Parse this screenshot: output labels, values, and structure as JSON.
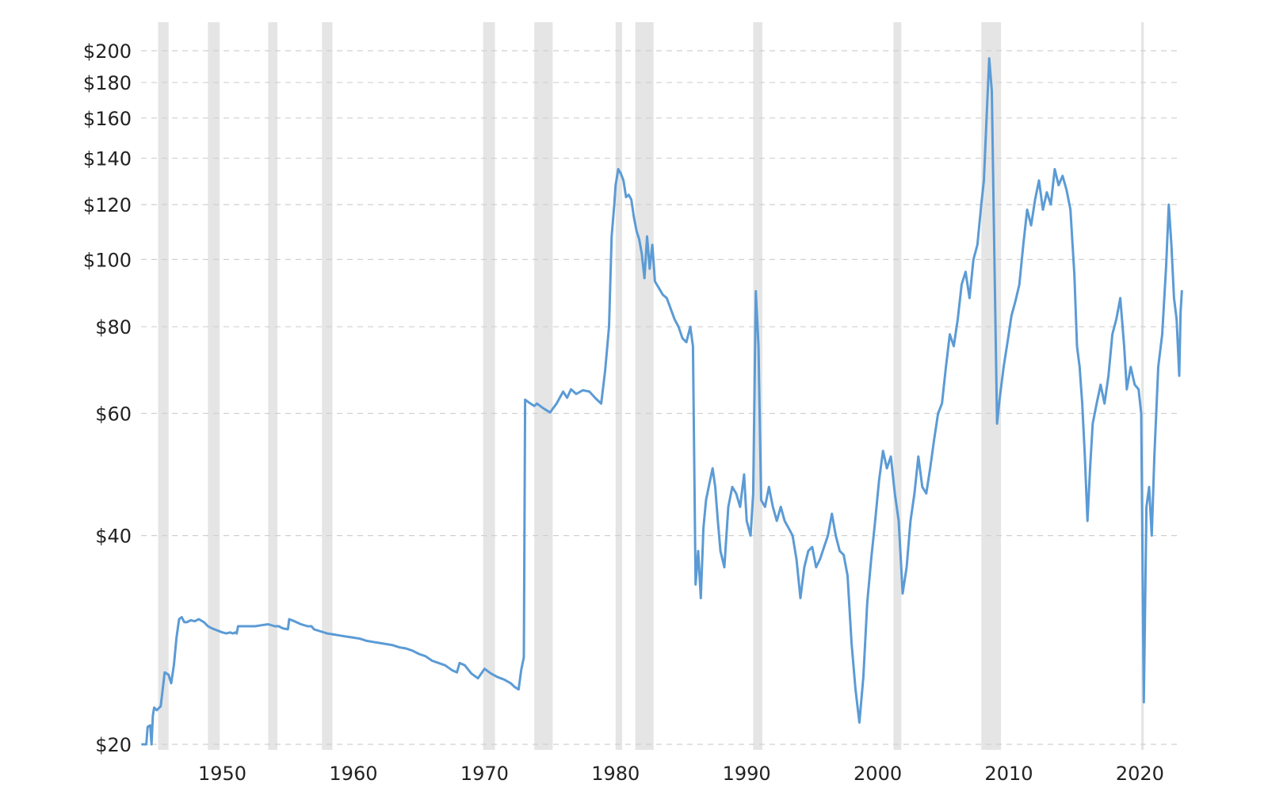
{
  "chart_data": {
    "type": "line",
    "title": "",
    "xlabel": "",
    "ylabel": "",
    "x_ticks": [
      "1950",
      "1960",
      "1970",
      "1980",
      "1990",
      "2000",
      "2010",
      "2020"
    ],
    "y_ticks": [
      "$200",
      "$180",
      "$160",
      "$140",
      "$120",
      "$100",
      "$80",
      "$60",
      "$40",
      "$20"
    ],
    "y_tick_values": [
      200,
      180,
      160,
      140,
      120,
      100,
      80,
      60,
      40,
      20
    ],
    "xlim": [
      1943.8,
      2023.0
    ],
    "ylim": [
      20,
      200
    ],
    "y_scale": "log",
    "grid": true,
    "legend": "none",
    "colors": {
      "series": "#5b9bd5",
      "shading": "#e5e5e5",
      "grid": "#d0d0d0"
    },
    "shaded_periods": [
      [
        1945.1,
        1945.9
      ],
      [
        1948.9,
        1949.8
      ],
      [
        1953.5,
        1954.2
      ],
      [
        1957.6,
        1958.4
      ],
      [
        1969.9,
        1970.8
      ],
      [
        1973.8,
        1975.2
      ],
      [
        1980.0,
        1980.5
      ],
      [
        1981.5,
        1982.9
      ],
      [
        1990.5,
        1991.2
      ],
      [
        2001.2,
        2001.8
      ],
      [
        2007.9,
        2009.4
      ],
      [
        2020.1,
        2020.3
      ]
    ],
    "series": [
      {
        "values": [
          [
            1943.9,
            20
          ],
          [
            1944.2,
            20
          ],
          [
            1944.3,
            21.2
          ],
          [
            1944.5,
            21.3
          ],
          [
            1944.6,
            20
          ],
          [
            1944.7,
            22
          ],
          [
            1944.8,
            22.6
          ],
          [
            1945.0,
            22.4
          ],
          [
            1945.3,
            22.7
          ],
          [
            1945.6,
            25.4
          ],
          [
            1945.9,
            25.2
          ],
          [
            1946.1,
            24.5
          ],
          [
            1946.3,
            26
          ],
          [
            1946.5,
            28.5
          ],
          [
            1946.7,
            30.3
          ],
          [
            1946.9,
            30.5
          ],
          [
            1947.1,
            30.0
          ],
          [
            1947.3,
            30.0
          ],
          [
            1947.6,
            30.2
          ],
          [
            1947.9,
            30.1
          ],
          [
            1948.2,
            30.3
          ],
          [
            1948.6,
            30.0
          ],
          [
            1948.9,
            29.6
          ],
          [
            1949.2,
            29.4
          ],
          [
            1949.6,
            29.2
          ],
          [
            1950.0,
            29.0
          ],
          [
            1950.3,
            28.9
          ],
          [
            1950.6,
            29.0
          ],
          [
            1950.8,
            28.9
          ],
          [
            1951.0,
            29.0
          ],
          [
            1951.1,
            28.9
          ],
          [
            1951.2,
            29.6
          ],
          [
            1951.5,
            29.6
          ],
          [
            1952.0,
            29.6
          ],
          [
            1952.5,
            29.6
          ],
          [
            1953.0,
            29.7
          ],
          [
            1953.5,
            29.8
          ],
          [
            1954.0,
            29.6
          ],
          [
            1954.3,
            29.6
          ],
          [
            1954.6,
            29.4
          ],
          [
            1955.0,
            29.3
          ],
          [
            1955.1,
            30.3
          ],
          [
            1955.5,
            30.1
          ],
          [
            1956.0,
            29.8
          ],
          [
            1956.5,
            29.6
          ],
          [
            1956.8,
            29.6
          ],
          [
            1957.0,
            29.3
          ],
          [
            1957.5,
            29.1
          ],
          [
            1958.0,
            28.9
          ],
          [
            1958.5,
            28.8
          ],
          [
            1959.0,
            28.7
          ],
          [
            1959.5,
            28.6
          ],
          [
            1960.0,
            28.5
          ],
          [
            1960.5,
            28.4
          ],
          [
            1961.0,
            28.2
          ],
          [
            1961.5,
            28.1
          ],
          [
            1962.0,
            28.0
          ],
          [
            1962.5,
            27.9
          ],
          [
            1963.0,
            27.8
          ],
          [
            1963.5,
            27.6
          ],
          [
            1964.0,
            27.5
          ],
          [
            1964.5,
            27.3
          ],
          [
            1965.0,
            27.0
          ],
          [
            1965.5,
            26.8
          ],
          [
            1966.0,
            26.4
          ],
          [
            1966.5,
            26.2
          ],
          [
            1967.0,
            26.0
          ],
          [
            1967.5,
            25.6
          ],
          [
            1967.9,
            25.4
          ],
          [
            1968.1,
            26.2
          ],
          [
            1968.5,
            26.0
          ],
          [
            1969.0,
            25.3
          ],
          [
            1969.5,
            24.9
          ],
          [
            1970.0,
            25.7
          ],
          [
            1970.5,
            25.3
          ],
          [
            1971.0,
            25.0
          ],
          [
            1971.5,
            24.8
          ],
          [
            1972.0,
            24.5
          ],
          [
            1972.3,
            24.2
          ],
          [
            1972.6,
            24.0
          ],
          [
            1972.8,
            25.6
          ],
          [
            1973.0,
            26.7
          ],
          [
            1973.1,
            62.8
          ],
          [
            1973.5,
            62.0
          ],
          [
            1973.8,
            61.5
          ],
          [
            1974.0,
            62.0
          ],
          [
            1974.5,
            61.0
          ],
          [
            1975.0,
            60.2
          ],
          [
            1975.5,
            62.0
          ],
          [
            1976.0,
            64.5
          ],
          [
            1976.3,
            63.2
          ],
          [
            1976.6,
            65.0
          ],
          [
            1977.0,
            64.0
          ],
          [
            1977.5,
            64.8
          ],
          [
            1978.0,
            64.5
          ],
          [
            1978.5,
            63.0
          ],
          [
            1978.9,
            62.0
          ],
          [
            1979.2,
            69.0
          ],
          [
            1979.5,
            80.0
          ],
          [
            1979.7,
            108.0
          ],
          [
            1979.9,
            120.0
          ],
          [
            1980.0,
            128.0
          ],
          [
            1980.2,
            135.0
          ],
          [
            1980.4,
            133.0
          ],
          [
            1980.6,
            130.0
          ],
          [
            1980.8,
            123.0
          ],
          [
            1981.0,
            124.0
          ],
          [
            1981.2,
            122.0
          ],
          [
            1981.4,
            115.0
          ],
          [
            1981.6,
            110.0
          ],
          [
            1981.8,
            107.0
          ],
          [
            1982.0,
            102.0
          ],
          [
            1982.2,
            94.0
          ],
          [
            1982.4,
            108.0
          ],
          [
            1982.6,
            97.0
          ],
          [
            1982.8,
            105.0
          ],
          [
            1983.0,
            93.0
          ],
          [
            1983.3,
            91.0
          ],
          [
            1983.6,
            89.0
          ],
          [
            1983.9,
            88.0
          ],
          [
            1984.2,
            85.0
          ],
          [
            1984.5,
            82.0
          ],
          [
            1984.8,
            80.0
          ],
          [
            1985.1,
            77.0
          ],
          [
            1985.4,
            76.0
          ],
          [
            1985.7,
            80.0
          ],
          [
            1985.9,
            75.0
          ],
          [
            1986.1,
            34.0
          ],
          [
            1986.3,
            38.0
          ],
          [
            1986.5,
            32.5
          ],
          [
            1986.7,
            41.0
          ],
          [
            1986.9,
            45.0
          ],
          [
            1987.2,
            48.0
          ],
          [
            1987.4,
            50.0
          ],
          [
            1987.6,
            47.0
          ],
          [
            1987.8,
            42.0
          ],
          [
            1988.0,
            38.0
          ],
          [
            1988.3,
            36.0
          ],
          [
            1988.6,
            44.0
          ],
          [
            1988.9,
            47.0
          ],
          [
            1989.2,
            46.0
          ],
          [
            1989.5,
            44.0
          ],
          [
            1989.8,
            49.0
          ],
          [
            1990.0,
            42.0
          ],
          [
            1990.3,
            40.0
          ],
          [
            1990.5,
            46.0
          ],
          [
            1990.7,
            90.0
          ],
          [
            1990.9,
            75.0
          ],
          [
            1991.1,
            45.0
          ],
          [
            1991.4,
            44.0
          ],
          [
            1991.7,
            47.0
          ],
          [
            1992.0,
            44.0
          ],
          [
            1992.3,
            42.0
          ],
          [
            1992.6,
            44.0
          ],
          [
            1992.9,
            42.0
          ],
          [
            1993.2,
            41.0
          ],
          [
            1993.5,
            40.0
          ],
          [
            1993.8,
            37.0
          ],
          [
            1994.1,
            32.5
          ],
          [
            1994.4,
            36.0
          ],
          [
            1994.7,
            38.0
          ],
          [
            1995.0,
            38.5
          ],
          [
            1995.3,
            36.0
          ],
          [
            1995.6,
            37.0
          ],
          [
            1995.9,
            38.5
          ],
          [
            1996.2,
            40.0
          ],
          [
            1996.5,
            43.0
          ],
          [
            1996.8,
            40.0
          ],
          [
            1997.1,
            38.0
          ],
          [
            1997.4,
            37.5
          ],
          [
            1997.7,
            35.0
          ],
          [
            1998.0,
            28.0
          ],
          [
            1998.3,
            24.0
          ],
          [
            1998.6,
            21.5
          ],
          [
            1998.9,
            25.0
          ],
          [
            1999.2,
            32.0
          ],
          [
            1999.5,
            37.0
          ],
          [
            1999.8,
            42.0
          ],
          [
            2000.1,
            48.0
          ],
          [
            2000.4,
            53.0
          ],
          [
            2000.7,
            50.0
          ],
          [
            2001.0,
            52.0
          ],
          [
            2001.3,
            46.0
          ],
          [
            2001.6,
            42.0
          ],
          [
            2001.9,
            33.0
          ],
          [
            2002.2,
            36.0
          ],
          [
            2002.5,
            42.0
          ],
          [
            2002.8,
            46.0
          ],
          [
            2003.1,
            52.0
          ],
          [
            2003.4,
            47.0
          ],
          [
            2003.7,
            46.0
          ],
          [
            2004.0,
            50.0
          ],
          [
            2004.3,
            55.0
          ],
          [
            2004.6,
            60.0
          ],
          [
            2004.9,
            62.0
          ],
          [
            2005.2,
            70.0
          ],
          [
            2005.5,
            78.0
          ],
          [
            2005.8,
            75.0
          ],
          [
            2006.1,
            82.0
          ],
          [
            2006.4,
            92.0
          ],
          [
            2006.7,
            96.0
          ],
          [
            2007.0,
            88.0
          ],
          [
            2007.3,
            100.0
          ],
          [
            2007.6,
            105.0
          ],
          [
            2007.9,
            120.0
          ],
          [
            2008.1,
            130.0
          ],
          [
            2008.3,
            160.0
          ],
          [
            2008.5,
            195.0
          ],
          [
            2008.7,
            175.0
          ],
          [
            2008.9,
            100.0
          ],
          [
            2009.1,
            58.0
          ],
          [
            2009.3,
            63.0
          ],
          [
            2009.6,
            70.0
          ],
          [
            2009.9,
            76.0
          ],
          [
            2010.2,
            83.0
          ],
          [
            2010.5,
            87.0
          ],
          [
            2010.8,
            92.0
          ],
          [
            2011.1,
            105.0
          ],
          [
            2011.4,
            118.0
          ],
          [
            2011.7,
            112.0
          ],
          [
            2012.0,
            122.0
          ],
          [
            2012.3,
            130.0
          ],
          [
            2012.6,
            118.0
          ],
          [
            2012.9,
            125.0
          ],
          [
            2013.2,
            120.0
          ],
          [
            2013.5,
            135.0
          ],
          [
            2013.8,
            128.0
          ],
          [
            2014.1,
            132.0
          ],
          [
            2014.4,
            126.0
          ],
          [
            2014.7,
            118.0
          ],
          [
            2015.0,
            95.0
          ],
          [
            2015.2,
            75.0
          ],
          [
            2015.4,
            70.0
          ],
          [
            2015.6,
            62.0
          ],
          [
            2015.8,
            52.0
          ],
          [
            2016.0,
            42.0
          ],
          [
            2016.2,
            50.0
          ],
          [
            2016.4,
            58.0
          ],
          [
            2016.7,
            62.0
          ],
          [
            2017.0,
            66.0
          ],
          [
            2017.3,
            62.0
          ],
          [
            2017.6,
            68.0
          ],
          [
            2017.9,
            78.0
          ],
          [
            2018.2,
            82.0
          ],
          [
            2018.5,
            88.0
          ],
          [
            2018.8,
            75.0
          ],
          [
            2019.0,
            65.0
          ],
          [
            2019.3,
            70.0
          ],
          [
            2019.6,
            66.0
          ],
          [
            2019.9,
            65.0
          ],
          [
            2020.1,
            60.0
          ],
          [
            2020.3,
            23.0
          ],
          [
            2020.5,
            44.0
          ],
          [
            2020.7,
            47.0
          ],
          [
            2020.9,
            40.0
          ],
          [
            2021.1,
            52.0
          ],
          [
            2021.4,
            70.0
          ],
          [
            2021.7,
            78.0
          ],
          [
            2022.0,
            98.0
          ],
          [
            2022.2,
            120.0
          ],
          [
            2022.4,
            105.0
          ],
          [
            2022.6,
            88.0
          ],
          [
            2022.8,
            82.0
          ],
          [
            2023.0,
            68.0
          ],
          [
            2023.1,
            84.0
          ],
          [
            2023.2,
            90.0
          ]
        ]
      }
    ]
  }
}
